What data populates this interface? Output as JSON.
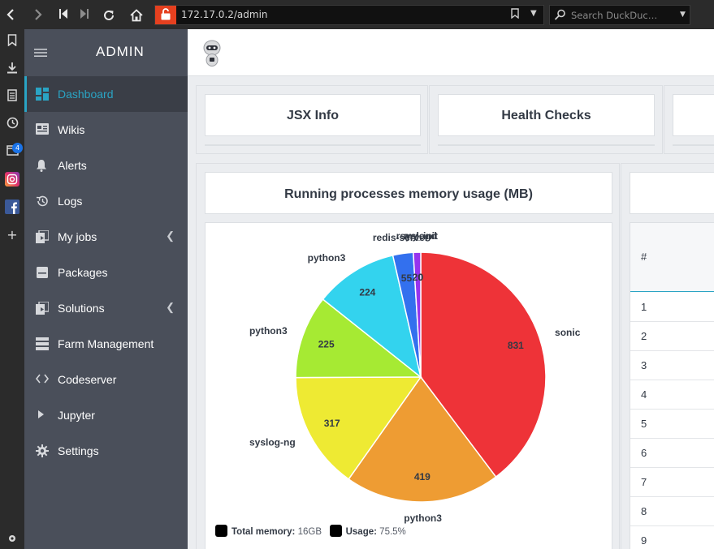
{
  "browser": {
    "url": "172.17.0.2/admin",
    "search_placeholder": "Search DuckDuc…",
    "sidebar_badge": "4"
  },
  "sidebar": {
    "title": "ADMIN",
    "items": [
      {
        "label": "Dashboard",
        "icon": "dashboard-icon",
        "active": true
      },
      {
        "label": "Wikis",
        "icon": "wiki-icon"
      },
      {
        "label": "Alerts",
        "icon": "bell-icon"
      },
      {
        "label": "Logs",
        "icon": "history-icon"
      },
      {
        "label": "My jobs",
        "icon": "jobs-icon",
        "chevron": true
      },
      {
        "label": "Packages",
        "icon": "package-icon"
      },
      {
        "label": "Solutions",
        "icon": "solutions-icon",
        "chevron": true
      },
      {
        "label": "Farm Management",
        "icon": "server-icon"
      },
      {
        "label": "Codeserver",
        "icon": "code-icon"
      },
      {
        "label": "Jupyter",
        "icon": "play-icon"
      },
      {
        "label": "Settings",
        "icon": "gear-icon"
      }
    ]
  },
  "cards": {
    "jsx_info": "JSX Info",
    "health_checks": "Health Checks"
  },
  "memory_panel": {
    "title": "Running processes memory usage (MB)",
    "legend": {
      "total_label": "Total memory:",
      "total_value": "16GB",
      "usage_label": "Usage:",
      "usage_value": "75.5%"
    }
  },
  "table": {
    "header": "#",
    "rows": [
      "1",
      "2",
      "3",
      "4",
      "5",
      "6",
      "7",
      "8",
      "9"
    ]
  },
  "chart_data": {
    "type": "pie",
    "title": "Running processes memory usage (MB)",
    "slices": [
      {
        "label": "sonic",
        "value": 831,
        "color": "#ee3338"
      },
      {
        "label": "python3",
        "value": 419,
        "color": "#ee9c33"
      },
      {
        "label": "syslog-ng",
        "value": 317,
        "color": "#eeea33"
      },
      {
        "label": "python3",
        "value": 225,
        "color": "#a6ea33"
      },
      {
        "label": "python3",
        "value": 224,
        "color": "#33d3ee"
      },
      {
        "label": "redis-server",
        "value": 55,
        "color": "#3370ee"
      },
      {
        "label": "rsyslogd",
        "value": 20,
        "color": "#9633ee"
      },
      {
        "label": "my_init",
        "value": 0,
        "color": "#ee33a6"
      }
    ]
  }
}
